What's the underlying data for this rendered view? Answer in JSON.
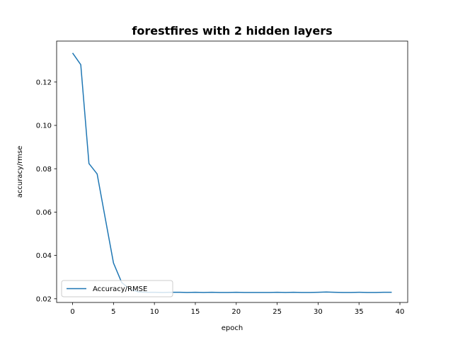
{
  "chart_data": {
    "type": "line",
    "title": "forestfires with 2 hidden layers",
    "xlabel": "epoch",
    "ylabel": "accuracy/rmse",
    "xlim": [
      -1.95,
      40.95
    ],
    "ylim": [
      0.0183,
      0.1389
    ],
    "xticks": [
      0,
      5,
      10,
      15,
      20,
      25,
      30,
      35,
      40
    ],
    "xtick_labels": [
      "0",
      "5",
      "10",
      "15",
      "20",
      "25",
      "30",
      "35",
      "40"
    ],
    "yticks": [
      0.02,
      0.04,
      0.06,
      0.08,
      0.1,
      0.12
    ],
    "ytick_labels": [
      "0.02",
      "0.04",
      "0.06",
      "0.08",
      "0.10",
      "0.12"
    ],
    "grid": false,
    "legend_position": "lower left",
    "series": [
      {
        "name": "Accuracy/RMSE",
        "color": "#1f77b4",
        "x": [
          0,
          1,
          2,
          3,
          4,
          5,
          6,
          7,
          8,
          9,
          10,
          11,
          12,
          13,
          14,
          15,
          16,
          17,
          18,
          19,
          20,
          21,
          22,
          23,
          24,
          25,
          26,
          27,
          28,
          29,
          30,
          31,
          32,
          33,
          34,
          35,
          36,
          37,
          38,
          39
        ],
        "y": [
          0.1334,
          0.128,
          0.0824,
          0.0776,
          0.057,
          0.0365,
          0.0275,
          0.0244,
          0.0232,
          0.023,
          0.023,
          0.0229,
          0.023,
          0.023,
          0.0229,
          0.023,
          0.0229,
          0.023,
          0.0229,
          0.0229,
          0.023,
          0.0229,
          0.0229,
          0.0229,
          0.0229,
          0.023,
          0.0229,
          0.023,
          0.0229,
          0.0229,
          0.023,
          0.0231,
          0.023,
          0.0229,
          0.0229,
          0.023,
          0.0229,
          0.0229,
          0.023,
          0.023
        ]
      }
    ]
  }
}
